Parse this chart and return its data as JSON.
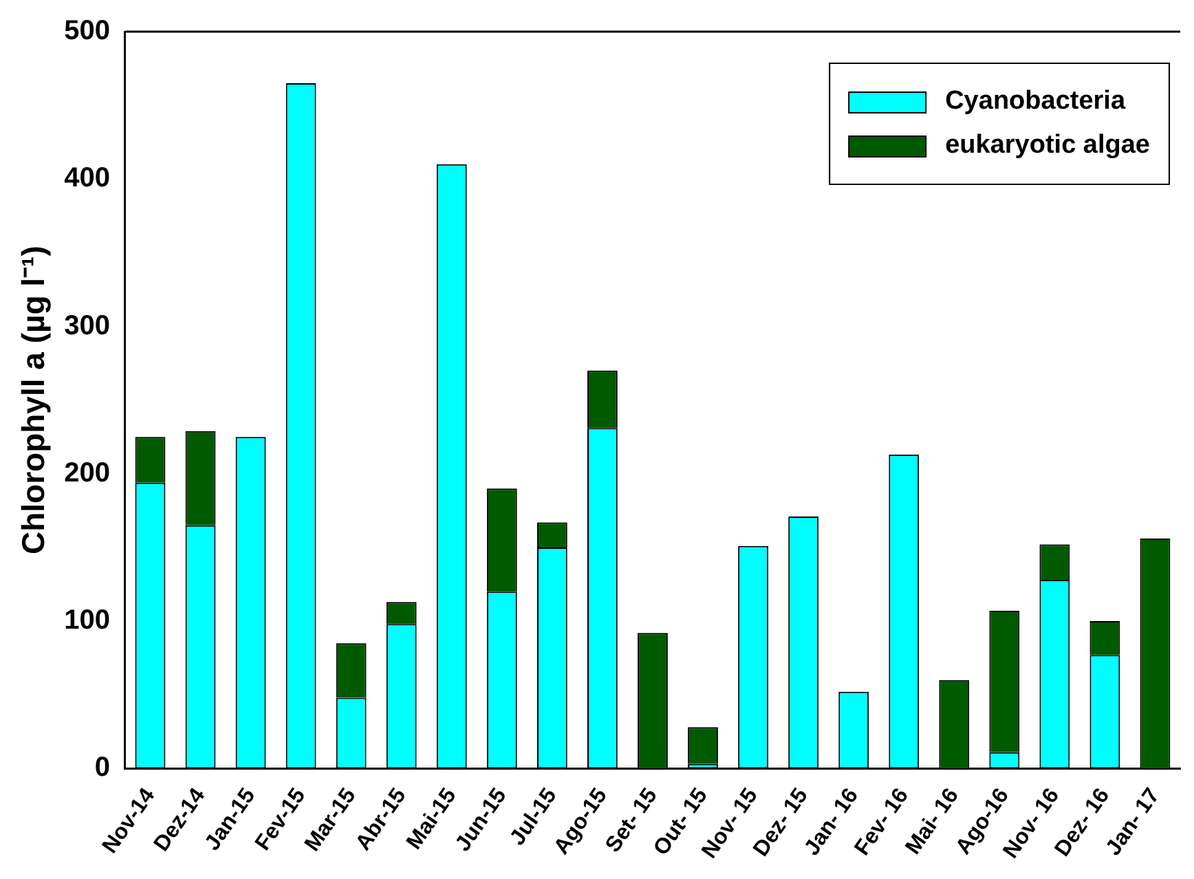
{
  "chart_data": {
    "type": "bar",
    "stacked": true,
    "ylabel": "Chlorophyll a (µg l⁻¹)",
    "categories": [
      "Nov-14",
      "Dez-14",
      "Jan-15",
      "Fev-15",
      "Mar-15",
      "Abr-15",
      "Mai-15",
      "Jun-15",
      "Jul-15",
      "Ago-15",
      "Set- 15",
      "Out- 15",
      "Nov- 15",
      "Dez- 15",
      "Jan- 16",
      "Fev- 16",
      "Mai- 16",
      "Ago-16",
      "Nov- 16",
      "Dez- 16",
      "Jan- 17"
    ],
    "series": [
      {
        "name": "Cyanobacteria",
        "color": "#00ffff",
        "values": [
          194,
          165,
          225,
          465,
          48,
          98,
          410,
          120,
          150,
          231,
          0,
          3,
          151,
          171,
          52,
          213,
          0,
          11,
          128,
          77,
          0
        ]
      },
      {
        "name": "eukaryotic algae",
        "color": "#005a00",
        "values": [
          31,
          64,
          0,
          0,
          37,
          15,
          0,
          70,
          17,
          39,
          92,
          25,
          0,
          0,
          0,
          0,
          60,
          96,
          24,
          23,
          156
        ]
      }
    ],
    "ylim": [
      0,
      500
    ],
    "yticks": [
      0,
      100,
      200,
      300,
      400,
      500
    ],
    "grid": false,
    "legend": "top right"
  }
}
